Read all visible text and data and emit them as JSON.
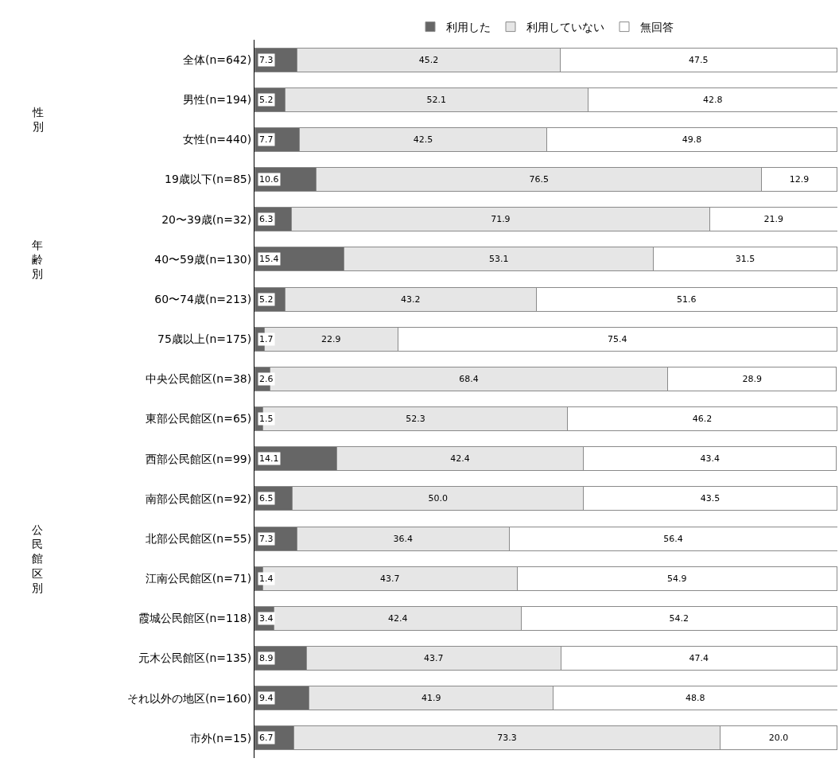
{
  "chart_data": {
    "type": "bar",
    "orientation": "horizontal",
    "stacked": true,
    "legend": "top",
    "tick_labels": "y",
    "xlim": [
      0,
      100.1
    ],
    "categories": [
      "全体(n=642)",
      "男性(n=194)",
      "女性(n=440)",
      "19歳以下(n=85)",
      "20〜39歳(n=32)",
      "40〜59歳(n=130)",
      "60〜74歳(n=213)",
      "75歳以上(n=175)",
      "中央公民館区(n=38)",
      "東部公民館区(n=65)",
      "西部公民館区(n=99)",
      "南部公民館区(n=92)",
      "北部公民館区(n=55)",
      "江南公民館区(n=71)",
      "霞城公民館区(n=118)",
      "元木公民館区(n=135)",
      "それ以外の地区(n=160)",
      "市外(n=15)"
    ],
    "series": [
      {
        "name": "利用した",
        "color": "#666666",
        "values": [
          7.3,
          5.2,
          7.7,
          10.6,
          6.3,
          15.4,
          5.2,
          1.7,
          2.6,
          1.5,
          14.1,
          6.5,
          7.3,
          1.4,
          3.4,
          8.9,
          9.4,
          6.7
        ],
        "value_labels": [
          "7.3",
          "5.2",
          "7.7",
          "10.6",
          "6.3",
          "15.4",
          "5.2",
          "1.7",
          "2.6",
          "1.5",
          "14.1",
          "6.5",
          "7.3",
          "1.4",
          "3.4",
          "8.9",
          "9.4",
          "6.7"
        ]
      },
      {
        "name": "利用していない",
        "color": "#e6e6e6",
        "values": [
          45.2,
          52.1,
          42.5,
          76.5,
          71.9,
          53.1,
          43.2,
          22.9,
          68.4,
          52.3,
          42.4,
          50.0,
          36.4,
          43.7,
          42.4,
          43.7,
          41.9,
          73.3
        ],
        "value_labels": [
          "45.2",
          "52.1",
          "42.5",
          "76.5",
          "71.9",
          "53.1",
          "43.2",
          "22.9",
          "68.4",
          "52.3",
          "42.4",
          "50.0",
          "36.4",
          "43.7",
          "42.4",
          "43.7",
          "41.9",
          "73.3"
        ]
      },
      {
        "name": "無回答",
        "color": "#ffffff",
        "values": [
          47.5,
          42.8,
          49.8,
          12.9,
          21.9,
          31.5,
          51.6,
          75.4,
          28.9,
          46.2,
          43.4,
          43.5,
          56.4,
          54.9,
          54.2,
          47.4,
          48.8,
          20.0
        ],
        "value_labels": [
          "47.5",
          "42.8",
          "49.8",
          "12.9",
          "21.9",
          "31.5",
          "51.6",
          "75.4",
          "28.9",
          "46.2",
          "43.4",
          "43.5",
          "56.4",
          "54.9",
          "54.2",
          "47.4",
          "48.8",
          "20.0"
        ]
      }
    ],
    "annotations": [
      "性別",
      "年齢別",
      "公民館区別"
    ]
  }
}
